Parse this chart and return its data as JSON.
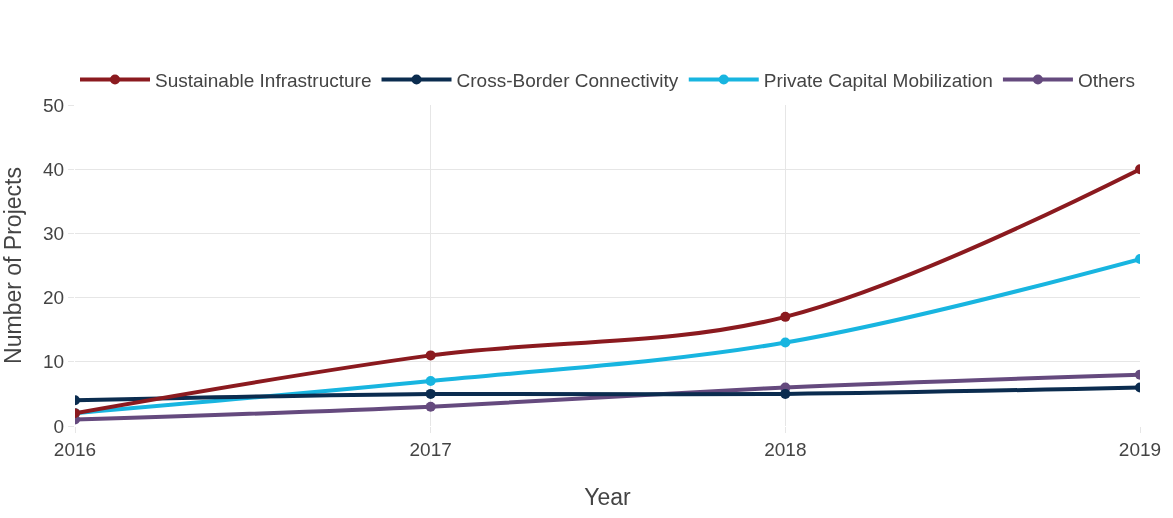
{
  "chart_data": {
    "type": "line",
    "xlabel": "Year",
    "ylabel": "Number of Projects",
    "x": [
      "2016",
      "2017",
      "2018",
      "2019"
    ],
    "series": [
      {
        "name": "Sustainable Infrastructure",
        "color": "#8b1a1f",
        "values": [
          2,
          11,
          17,
          40
        ]
      },
      {
        "name": "Cross-Border Connectivity",
        "color": "#0b2c4f",
        "values": [
          4,
          5,
          5,
          6
        ]
      },
      {
        "name": "Private Capital Mobilization",
        "color": "#18b5e0",
        "values": [
          2,
          7,
          13,
          26
        ]
      },
      {
        "name": "Others",
        "color": "#654a7e",
        "values": [
          1,
          3,
          6,
          8
        ]
      }
    ],
    "xlim": [
      "2016",
      "2019"
    ],
    "xticks": [
      {
        "value": "2016",
        "label": "2016"
      },
      {
        "value": "2017",
        "label": "2017"
      },
      {
        "value": "2018",
        "label": "2018"
      },
      {
        "value": "2019",
        "label": "2019"
      }
    ],
    "ylim": [
      0,
      50
    ],
    "yticks": [
      0,
      10,
      20,
      30,
      40,
      50
    ],
    "grid": true,
    "legend": "top",
    "marker": "circle",
    "line_style": "solid"
  }
}
